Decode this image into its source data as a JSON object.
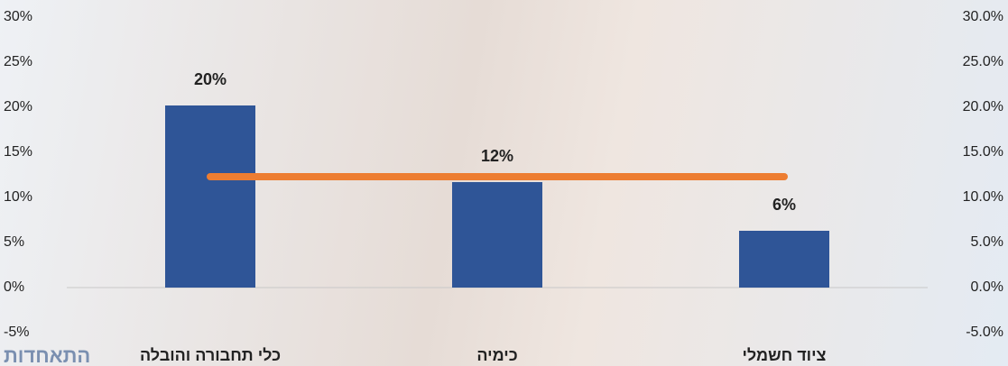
{
  "chart_data": {
    "type": "bar",
    "categories": [
      "כלי תחבורה והובלה",
      "כימיה",
      "ציוד חשמלי"
    ],
    "series": [
      {
        "type": "bar",
        "color": "#2f5597",
        "values": [
          20.2,
          11.7,
          6.3
        ],
        "value_labels": [
          "20%",
          "12%",
          "6%"
        ]
      },
      {
        "type": "line",
        "axis": "y2",
        "color": "#ed7d31",
        "values": [
          12.3,
          12.3,
          12.3
        ]
      }
    ],
    "ylim": [
      -5,
      30
    ],
    "yticks": [
      {
        "value": -5,
        "label": "-5%"
      },
      {
        "value": 0,
        "label": "0%"
      },
      {
        "value": 5,
        "label": "5%"
      },
      {
        "value": 10,
        "label": "10%"
      },
      {
        "value": 15,
        "label": "15%"
      },
      {
        "value": 20,
        "label": "20%"
      },
      {
        "value": 25,
        "label": "25%"
      },
      {
        "value": 30,
        "label": "30%"
      }
    ],
    "y2lim": [
      -5,
      30
    ],
    "y2ticks": [
      {
        "value": -5,
        "label": "-5.0%"
      },
      {
        "value": 0,
        "label": "0.0%"
      },
      {
        "value": 5,
        "label": "5.0%"
      },
      {
        "value": 10,
        "label": "10.0%"
      },
      {
        "value": 15,
        "label": "15.0%"
      },
      {
        "value": 20,
        "label": "20.0%"
      },
      {
        "value": 25,
        "label": "25.0%"
      },
      {
        "value": 30,
        "label": "30.0%"
      }
    ],
    "grid": false
  },
  "logo": "התאחדות"
}
